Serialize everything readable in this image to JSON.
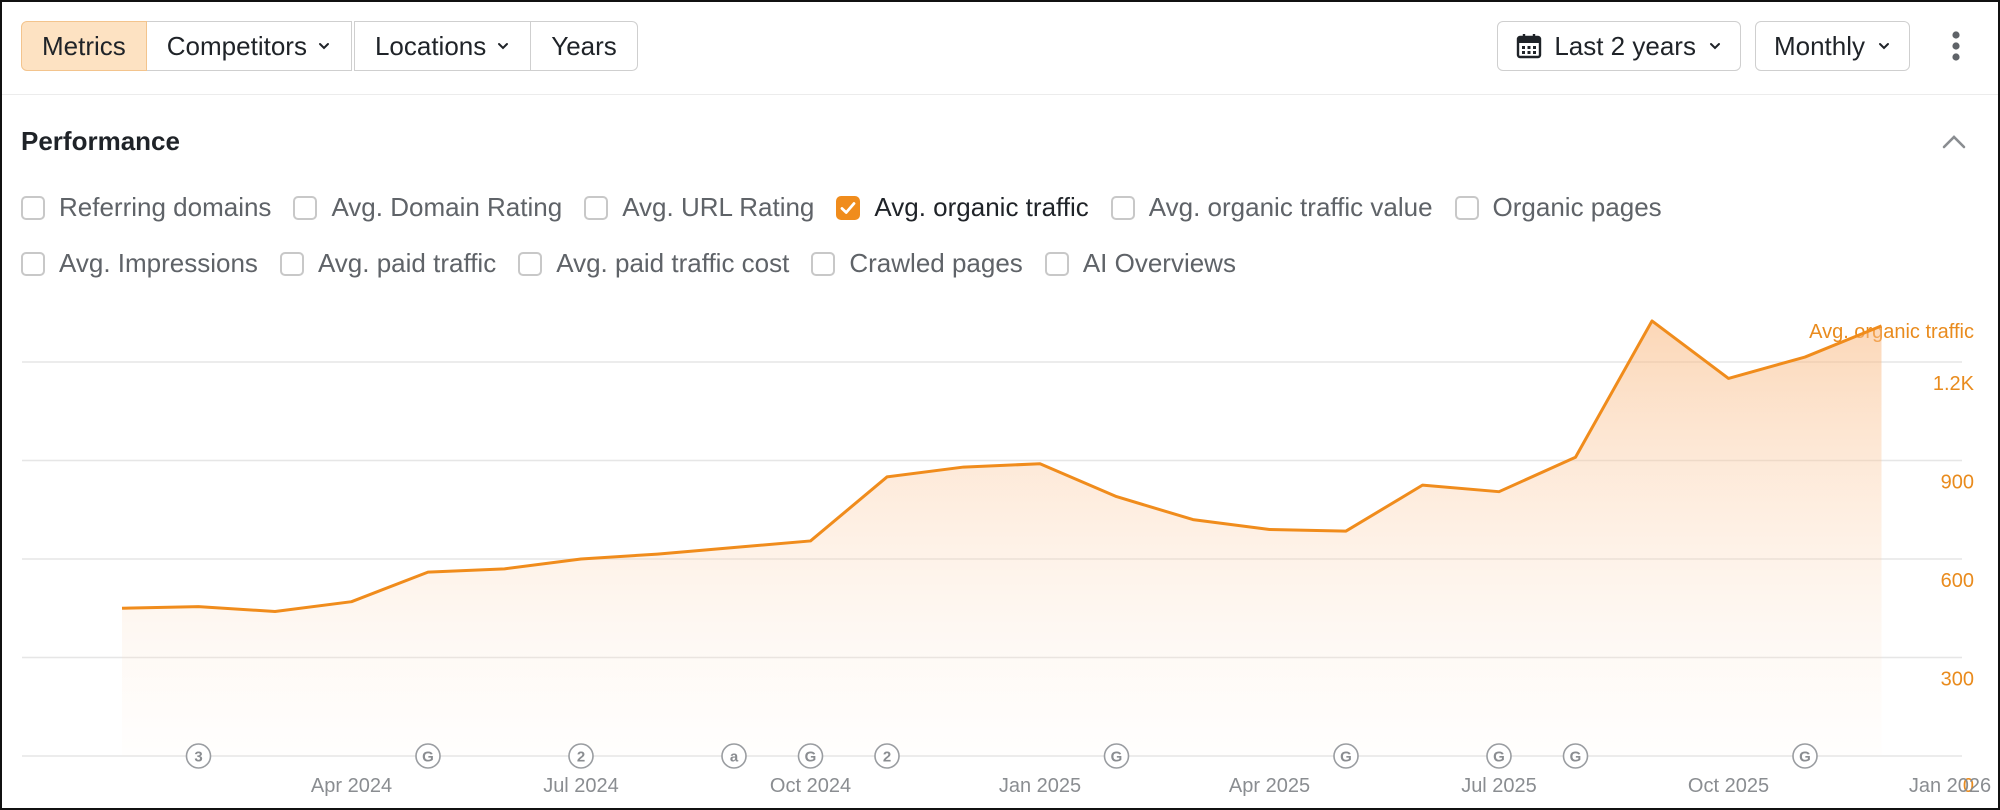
{
  "toolbar": {
    "segments": [
      {
        "label": "Metrics",
        "active": true,
        "has_dropdown": false
      },
      {
        "label": "Competitors",
        "active": false,
        "has_dropdown": true
      },
      {
        "label": "Locations",
        "active": false,
        "has_dropdown": true
      },
      {
        "label": "Years",
        "active": false,
        "has_dropdown": false
      }
    ],
    "date_range": "Last 2 years",
    "granularity": "Monthly"
  },
  "performance": {
    "title": "Performance",
    "metrics_row1": [
      {
        "label": "Referring domains",
        "checked": false
      },
      {
        "label": "Avg. Domain Rating",
        "checked": false
      },
      {
        "label": "Avg. URL Rating",
        "checked": false
      },
      {
        "label": "Avg. organic traffic",
        "checked": true
      },
      {
        "label": "Avg. organic traffic value",
        "checked": false
      },
      {
        "label": "Organic pages",
        "checked": false
      }
    ],
    "metrics_row2": [
      {
        "label": "Avg. Impressions",
        "checked": false
      },
      {
        "label": "Avg. paid traffic",
        "checked": false
      },
      {
        "label": "Avg. paid traffic cost",
        "checked": false
      },
      {
        "label": "Crawled pages",
        "checked": false
      },
      {
        "label": "AI Overviews",
        "checked": false
      }
    ]
  },
  "colors": {
    "accent": "#f08c1c",
    "active_segment_bg": "#fde2c2",
    "grid": "#e6e6e6",
    "axis_text": "#8a8d91"
  },
  "chart_data": {
    "type": "area",
    "series": [
      {
        "name": "Avg. organic traffic",
        "values": [
          450,
          455,
          440,
          470,
          560,
          570,
          600,
          615,
          635,
          655,
          850,
          880,
          890,
          790,
          720,
          690,
          685,
          825,
          805,
          910,
          1325,
          1150,
          1215,
          1310
        ]
      }
    ],
    "x": [
      "2024-01",
      "2024-02",
      "2024-03",
      "2024-04",
      "2024-05",
      "2024-06",
      "2024-07",
      "2024-08",
      "2024-09",
      "2024-10",
      "2024-11",
      "2024-12",
      "2025-01",
      "2025-02",
      "2025-03",
      "2025-04",
      "2025-05",
      "2025-06",
      "2025-07",
      "2025-08",
      "2025-09",
      "2025-10",
      "2025-11",
      "2025-12"
    ],
    "x_tick_labels": [
      {
        "label": "Apr 2024",
        "month": 3.0
      },
      {
        "label": "Jul 2024",
        "month": 6.0
      },
      {
        "label": "Oct 2024",
        "month": 9.0
      },
      {
        "label": "Jan 2025",
        "month": 12.0
      },
      {
        "label": "Apr 2025",
        "month": 15.0
      },
      {
        "label": "Jul 2025",
        "month": 18.0
      },
      {
        "label": "Oct 2025",
        "month": 21.0
      },
      {
        "label": "Jan 2026",
        "month": 24.0
      }
    ],
    "y_ticks": [
      "0",
      "300",
      "600",
      "900",
      "1.2K"
    ],
    "y_tick_values": [
      0,
      300,
      600,
      900,
      1200
    ],
    "ylim": [
      0,
      1200
    ],
    "ylabel": "Avg. organic traffic",
    "grid": true,
    "annotations": [
      {
        "month": 1.0,
        "text": "3"
      },
      {
        "month": 4.0,
        "text": "G"
      },
      {
        "month": 6.0,
        "text": "2"
      },
      {
        "month": 8.0,
        "text": "a"
      },
      {
        "month": 9.0,
        "text": "G"
      },
      {
        "month": 10.0,
        "text": "2"
      },
      {
        "month": 13.0,
        "text": "G"
      },
      {
        "month": 16.0,
        "text": "G"
      },
      {
        "month": 18.0,
        "text": "G"
      },
      {
        "month": 19.0,
        "text": "G"
      },
      {
        "month": 22.0,
        "text": "G"
      }
    ]
  }
}
